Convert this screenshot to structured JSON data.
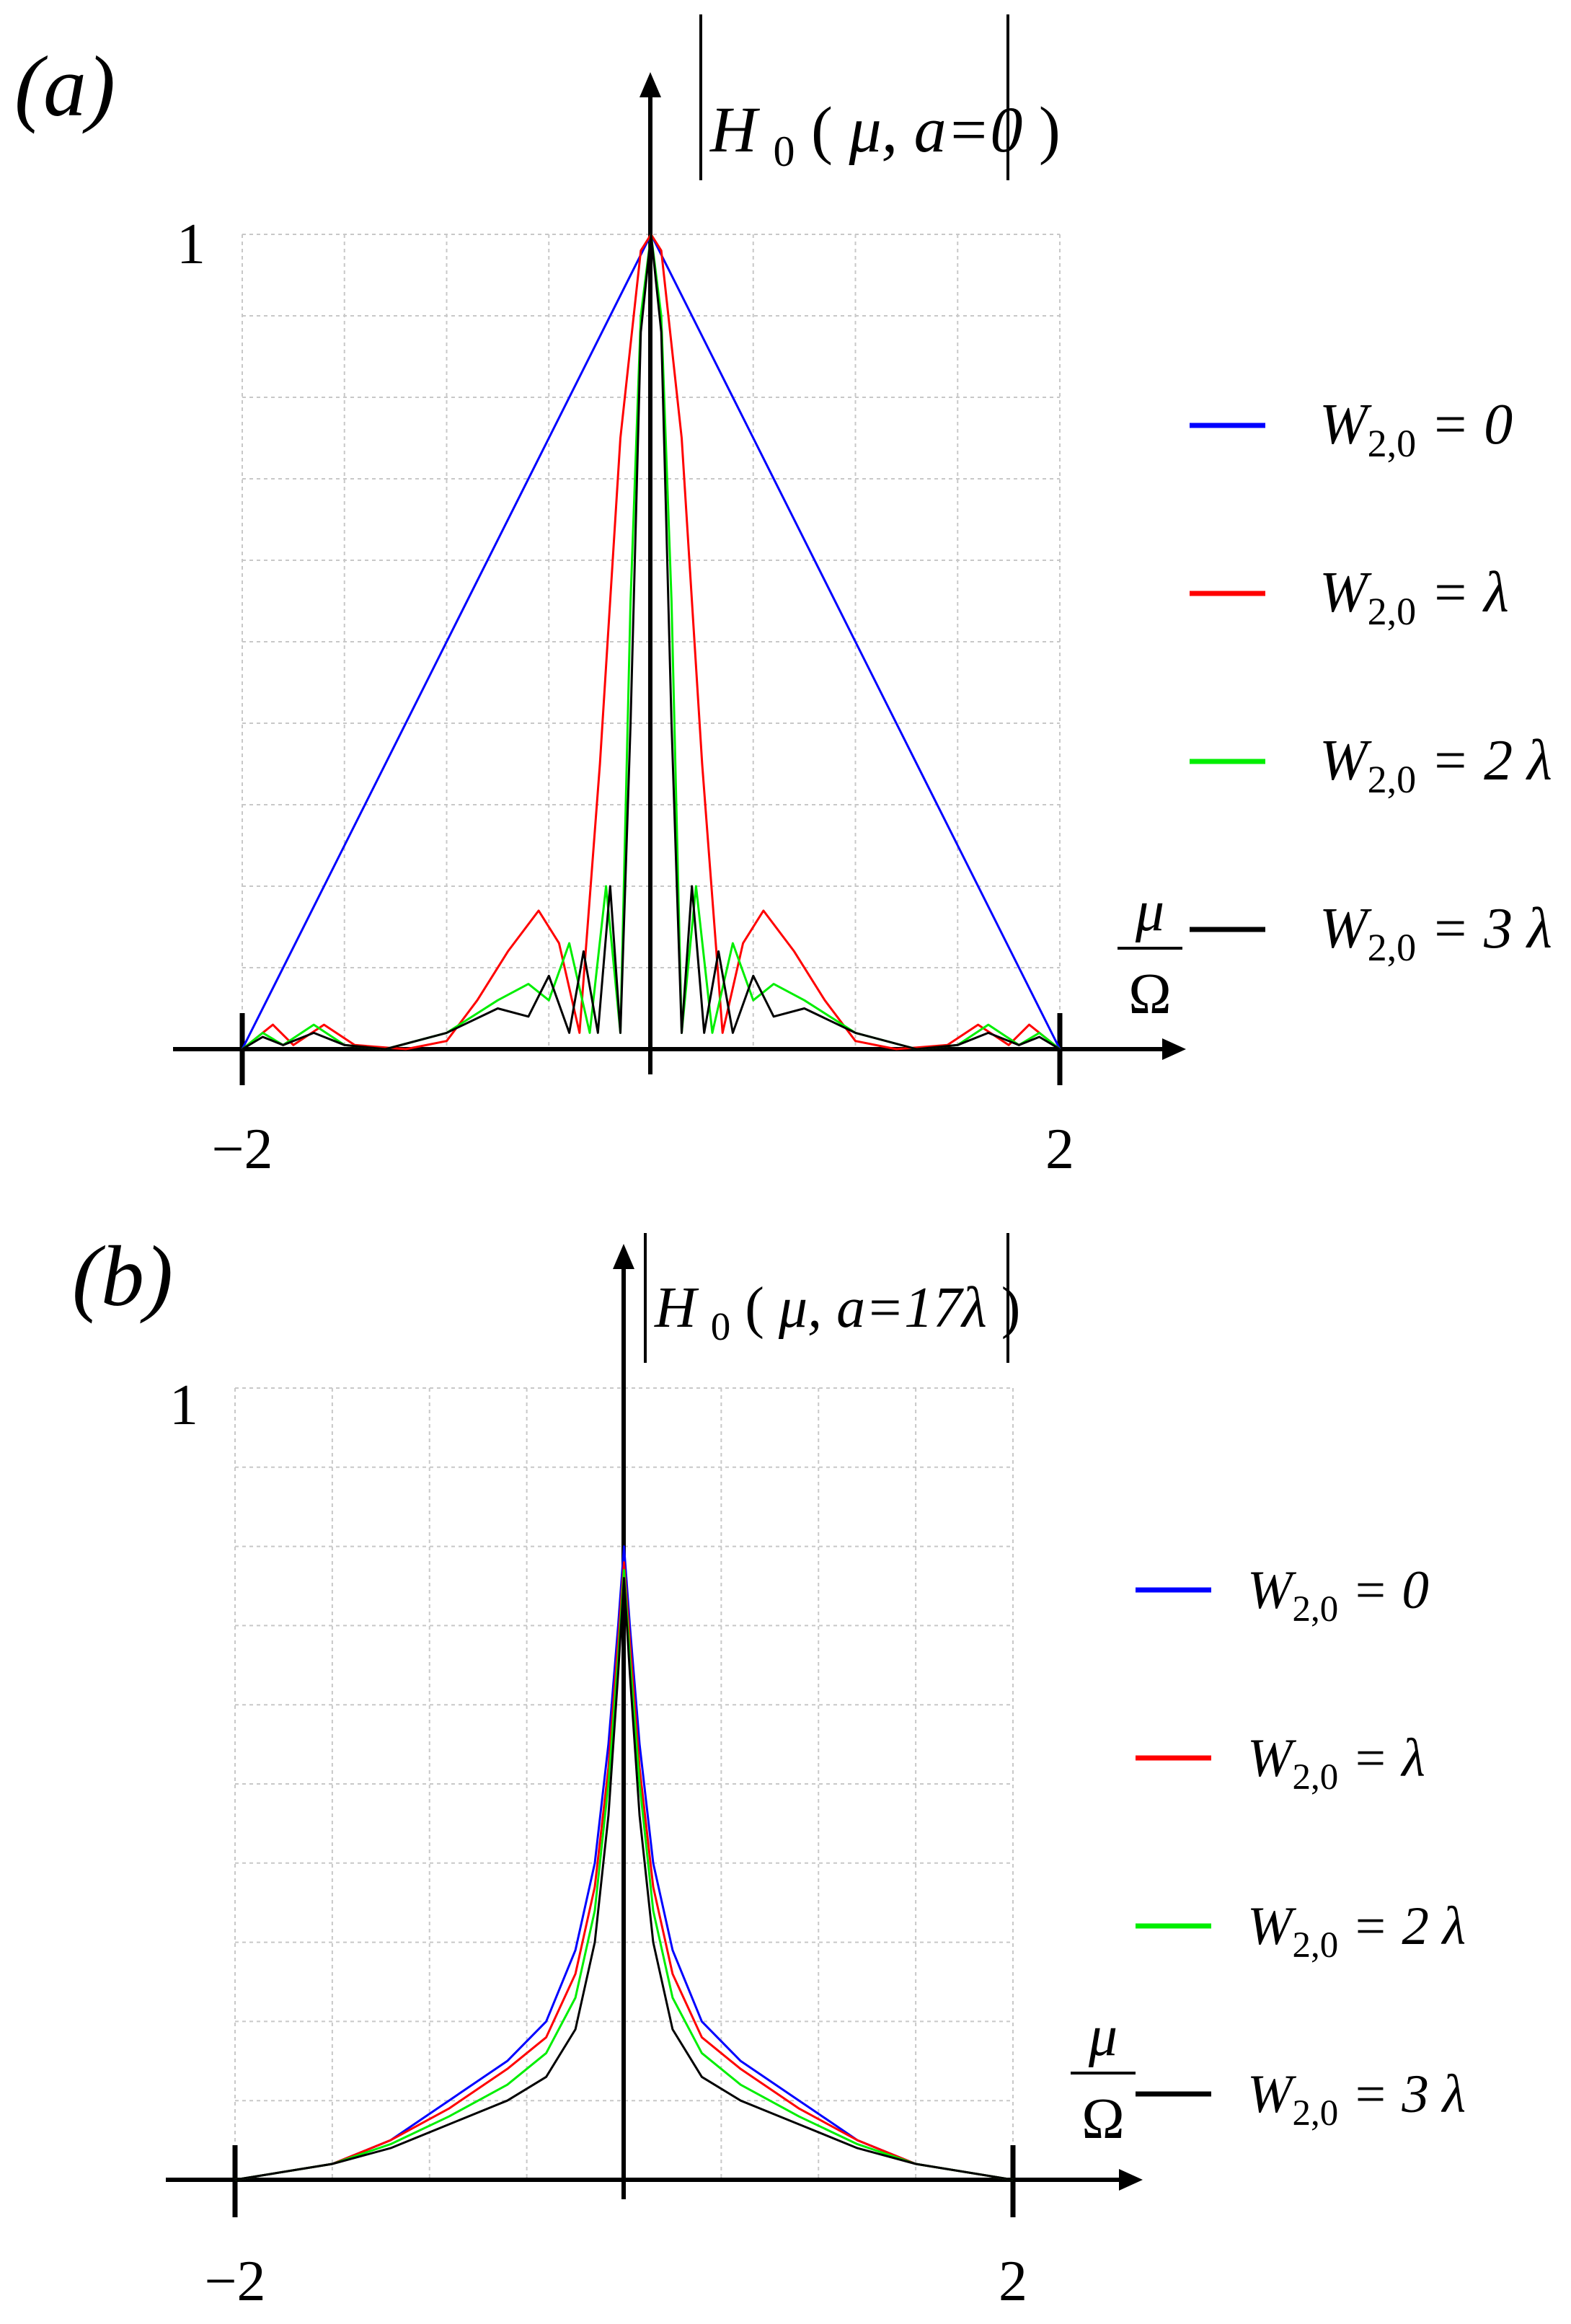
{
  "panels": [
    {
      "panel_label": "(a)",
      "y_axis_label": "|H0(μ, a=0)|",
      "y_axis_label_parts": {
        "H": "H",
        "sub": "0",
        "args": "μ, a=0"
      },
      "x_axis_label": {
        "num": "μ",
        "den": "Ω"
      },
      "y_tick_label": "1",
      "x_tick_labels": [
        "−2",
        "2"
      ]
    },
    {
      "panel_label": "(b)",
      "y_axis_label": "|H0(μ, a=17λ)|",
      "y_axis_label_parts": {
        "H": "H",
        "sub": "0",
        "args": "μ, a=17λ"
      },
      "x_axis_label": {
        "num": "μ",
        "den": "Ω"
      },
      "y_tick_label": "1",
      "x_tick_labels": [
        "−2",
        "2"
      ]
    }
  ],
  "legend": [
    {
      "label": "W2,0 = 0",
      "main": "W",
      "sub": "2,0",
      "rhs": "= 0",
      "color": "#0000ff"
    },
    {
      "label": "W2,0 = λ",
      "main": "W",
      "sub": "2,0",
      "rhs": "= λ",
      "color": "#ff0000"
    },
    {
      "label": "W2,0 = 2λ",
      "main": "W",
      "sub": "2,0",
      "rhs": "= 2 λ",
      "color": "#00ee00"
    },
    {
      "label": "W2,0 = 3λ",
      "main": "W",
      "sub": "2,0",
      "rhs": "= 3 λ",
      "color": "#000000"
    }
  ],
  "chart_data": [
    {
      "type": "line",
      "xlim": [
        -2,
        2
      ],
      "ylim": [
        0,
        1
      ],
      "grid": true,
      "legend_position": "right",
      "series": [
        {
          "name": "W2,0 = 0",
          "color": "#0000ff",
          "x": [
            -2,
            -1.5,
            -1,
            -0.5,
            0,
            0.5,
            1,
            1.5,
            2
          ],
          "y": [
            0,
            0.25,
            0.5,
            0.75,
            1,
            0.75,
            0.5,
            0.25,
            0
          ]
        },
        {
          "name": "W2,0 = λ",
          "color": "#ff0000",
          "x": [
            -2,
            -1.85,
            -1.75,
            -1.6,
            -1.45,
            -1.2,
            -1.0,
            -0.85,
            -0.7,
            -0.55,
            -0.45,
            -0.35,
            -0.25,
            -0.15,
            -0.05,
            0,
            0.05,
            0.15,
            0.25,
            0.35,
            0.45,
            0.55,
            0.7,
            0.85,
            1.0,
            1.2,
            1.45,
            1.6,
            1.75,
            1.85,
            2
          ],
          "y": [
            0,
            0.03,
            0.005,
            0.03,
            0.005,
            0.0,
            0.01,
            0.06,
            0.12,
            0.17,
            0.13,
            0.02,
            0.35,
            0.75,
            0.98,
            1.0,
            0.98,
            0.75,
            0.35,
            0.02,
            0.13,
            0.17,
            0.12,
            0.06,
            0.01,
            0.0,
            0.005,
            0.03,
            0.005,
            0.03,
            0
          ]
        },
        {
          "name": "W2,0 = 2λ",
          "color": "#00ee00",
          "x": [
            -2,
            -1.9,
            -1.8,
            -1.65,
            -1.5,
            -1.3,
            -1.0,
            -0.75,
            -0.6,
            -0.5,
            -0.4,
            -0.3,
            -0.22,
            -0.15,
            -0.1,
            -0.05,
            0,
            0.05,
            0.1,
            0.15,
            0.22,
            0.3,
            0.4,
            0.5,
            0.6,
            0.75,
            1.0,
            1.3,
            1.5,
            1.65,
            1.8,
            1.9,
            2
          ],
          "y": [
            0,
            0.02,
            0.005,
            0.03,
            0.005,
            0.0,
            0.02,
            0.06,
            0.08,
            0.06,
            0.13,
            0.02,
            0.2,
            0.02,
            0.55,
            0.9,
            1.0,
            0.9,
            0.55,
            0.02,
            0.2,
            0.02,
            0.13,
            0.06,
            0.08,
            0.06,
            0.02,
            0.0,
            0.005,
            0.03,
            0.005,
            0.02,
            0
          ]
        },
        {
          "name": "W2,0 = 3λ",
          "color": "#000000",
          "x": [
            -2,
            -1.9,
            -1.8,
            -1.65,
            -1.5,
            -1.3,
            -1.0,
            -0.75,
            -0.6,
            -0.5,
            -0.4,
            -0.33,
            -0.26,
            -0.2,
            -0.15,
            -0.1,
            -0.05,
            0,
            0.05,
            0.1,
            0.15,
            0.2,
            0.26,
            0.33,
            0.4,
            0.5,
            0.6,
            0.75,
            1.0,
            1.3,
            1.5,
            1.65,
            1.8,
            1.9,
            2
          ],
          "y": [
            0,
            0.015,
            0.005,
            0.02,
            0.005,
            0.0,
            0.02,
            0.05,
            0.04,
            0.09,
            0.02,
            0.12,
            0.02,
            0.2,
            0.02,
            0.4,
            0.88,
            1.0,
            0.88,
            0.4,
            0.02,
            0.2,
            0.02,
            0.12,
            0.02,
            0.09,
            0.04,
            0.05,
            0.02,
            0.0,
            0.005,
            0.02,
            0.005,
            0.015,
            0
          ]
        }
      ]
    },
    {
      "type": "line",
      "xlim": [
        -2,
        2
      ],
      "ylim": [
        0,
        1
      ],
      "grid": true,
      "legend_position": "right",
      "series": [
        {
          "name": "W2,0 = 0",
          "color": "#0000ff",
          "x": [
            -2,
            -1.5,
            -1.2,
            -0.9,
            -0.6,
            -0.4,
            -0.25,
            -0.15,
            -0.08,
            -0.03,
            0,
            0.03,
            0.08,
            0.15,
            0.25,
            0.4,
            0.6,
            0.9,
            1.2,
            1.5,
            2
          ],
          "y": [
            0,
            0.02,
            0.05,
            0.1,
            0.15,
            0.2,
            0.29,
            0.4,
            0.55,
            0.7,
            0.8,
            0.7,
            0.55,
            0.4,
            0.29,
            0.2,
            0.15,
            0.1,
            0.05,
            0.02,
            0
          ]
        },
        {
          "name": "W2,0 = λ",
          "color": "#ff0000",
          "x": [
            -2,
            -1.5,
            -1.2,
            -0.9,
            -0.6,
            -0.4,
            -0.25,
            -0.15,
            -0.08,
            -0.03,
            0,
            0.03,
            0.08,
            0.15,
            0.25,
            0.4,
            0.6,
            0.9,
            1.2,
            1.5,
            2
          ],
          "y": [
            0,
            0.02,
            0.05,
            0.09,
            0.14,
            0.18,
            0.26,
            0.37,
            0.52,
            0.68,
            0.78,
            0.68,
            0.52,
            0.37,
            0.26,
            0.18,
            0.14,
            0.09,
            0.05,
            0.02,
            0
          ]
        },
        {
          "name": "W2,0 = 2λ",
          "color": "#00ee00",
          "x": [
            -2,
            -1.5,
            -1.2,
            -0.9,
            -0.6,
            -0.4,
            -0.25,
            -0.15,
            -0.08,
            -0.03,
            0,
            0.03,
            0.08,
            0.15,
            0.25,
            0.4,
            0.6,
            0.9,
            1.2,
            1.5,
            2
          ],
          "y": [
            0,
            0.02,
            0.045,
            0.08,
            0.12,
            0.16,
            0.23,
            0.34,
            0.5,
            0.66,
            0.77,
            0.66,
            0.5,
            0.34,
            0.23,
            0.16,
            0.12,
            0.08,
            0.045,
            0.02,
            0
          ]
        },
        {
          "name": "W2,0 = 3λ",
          "color": "#000000",
          "x": [
            -2,
            -1.5,
            -1.2,
            -0.9,
            -0.6,
            -0.4,
            -0.25,
            -0.15,
            -0.08,
            -0.03,
            0,
            0.03,
            0.08,
            0.15,
            0.25,
            0.4,
            0.6,
            0.9,
            1.2,
            1.5,
            2
          ],
          "y": [
            0,
            0.02,
            0.04,
            0.07,
            0.1,
            0.13,
            0.19,
            0.3,
            0.46,
            0.64,
            0.76,
            0.64,
            0.46,
            0.3,
            0.19,
            0.13,
            0.1,
            0.07,
            0.04,
            0.02,
            0
          ]
        }
      ]
    }
  ]
}
